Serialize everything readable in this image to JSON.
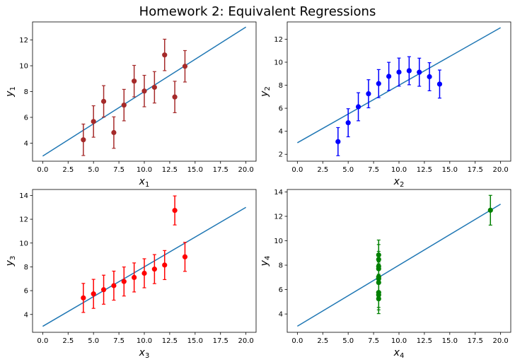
{
  "figure": {
    "title": "Homework 2: Equivalent Regressions"
  },
  "chart_data": [
    {
      "type": "scatter",
      "xlabel": "x",
      "xlabel_sub": "1",
      "ylabel": "y",
      "ylabel_sub": "1",
      "xlim": [
        -1,
        21
      ],
      "ylim": [
        2.6,
        13.4
      ],
      "xticks": [
        0,
        2.5,
        5,
        7.5,
        10,
        12.5,
        15,
        17.5,
        20
      ],
      "xtick_labels": [
        "0.0",
        "2.5",
        "5.0",
        "7.5",
        "10.0",
        "12.5",
        "15.0",
        "17.5",
        "20.0"
      ],
      "yticks": [
        4,
        6,
        8,
        10,
        12
      ],
      "ytick_labels": [
        "4",
        "6",
        "8",
        "10",
        "12"
      ],
      "points": {
        "x": [
          10,
          8,
          13,
          9,
          11,
          14,
          6,
          4,
          12,
          7,
          5
        ],
        "y": [
          8.04,
          6.95,
          7.58,
          8.81,
          8.33,
          9.96,
          7.24,
          4.26,
          10.84,
          4.82,
          5.68
        ]
      },
      "error": 1.22,
      "color": "#a52a2a",
      "fit_line": {
        "x": [
          0,
          20
        ],
        "y": [
          3.0,
          13.0
        ],
        "color": "#1f77b4"
      }
    },
    {
      "type": "scatter",
      "xlabel": "x",
      "xlabel_sub": "2",
      "ylabel": "y",
      "ylabel_sub": "2",
      "xlim": [
        -1,
        21
      ],
      "ylim": [
        1.4,
        13.5
      ],
      "xticks": [
        0,
        2.5,
        5,
        7.5,
        10,
        12.5,
        15,
        17.5,
        20
      ],
      "xtick_labels": [
        "0.0",
        "2.5",
        "5.0",
        "7.5",
        "10.0",
        "12.5",
        "15.0",
        "17.5",
        "20.0"
      ],
      "yticks": [
        2,
        4,
        6,
        8,
        10,
        12
      ],
      "ytick_labels": [
        "2",
        "4",
        "6",
        "8",
        "10",
        "12"
      ],
      "points": {
        "x": [
          10,
          8,
          13,
          9,
          11,
          14,
          6,
          4,
          12,
          7,
          5
        ],
        "y": [
          9.14,
          8.14,
          8.74,
          8.77,
          9.26,
          8.1,
          6.13,
          3.1,
          9.13,
          7.26,
          4.74
        ]
      },
      "error": 1.22,
      "color": "#0000ff",
      "fit_line": {
        "x": [
          0,
          20
        ],
        "y": [
          3.0,
          13.0
        ],
        "color": "#1f77b4"
      }
    },
    {
      "type": "scatter",
      "xlabel": "x",
      "xlabel_sub": "3",
      "ylabel": "y",
      "ylabel_sub": "3",
      "xlim": [
        -1,
        21
      ],
      "ylim": [
        2.5,
        14.5
      ],
      "xticks": [
        0,
        2.5,
        5,
        7.5,
        10,
        12.5,
        15,
        17.5,
        20
      ],
      "xtick_labels": [
        "0.0",
        "2.5",
        "5.0",
        "7.5",
        "10.0",
        "12.5",
        "15.0",
        "17.5",
        "20.0"
      ],
      "yticks": [
        4,
        6,
        8,
        10,
        12,
        14
      ],
      "ytick_labels": [
        "4",
        "6",
        "8",
        "10",
        "12",
        "14"
      ],
      "points": {
        "x": [
          10,
          8,
          13,
          9,
          11,
          14,
          6,
          4,
          12,
          7,
          5
        ],
        "y": [
          7.46,
          6.77,
          12.74,
          7.11,
          7.81,
          8.84,
          6.08,
          5.39,
          8.15,
          6.42,
          5.73
        ]
      },
      "error": 1.22,
      "color": "#ff0000",
      "fit_line": {
        "x": [
          0,
          20
        ],
        "y": [
          3.0,
          13.0
        ],
        "color": "#1f77b4"
      }
    },
    {
      "type": "scatter",
      "xlabel": "x",
      "xlabel_sub": "4",
      "ylabel": "y",
      "ylabel_sub": "4",
      "xlim": [
        -1,
        21
      ],
      "ylim": [
        2.5,
        14.2
      ],
      "xticks": [
        0,
        2.5,
        5,
        7.5,
        10,
        12.5,
        15,
        17.5,
        20
      ],
      "xtick_labels": [
        "0.0",
        "2.5",
        "5.0",
        "7.5",
        "10.0",
        "12.5",
        "15.0",
        "17.5",
        "20.0"
      ],
      "yticks": [
        4,
        6,
        8,
        10,
        12,
        14
      ],
      "ytick_labels": [
        "4",
        "6",
        "8",
        "10",
        "12",
        "14"
      ],
      "points": {
        "x": [
          8,
          8,
          8,
          8,
          8,
          8,
          8,
          19,
          8,
          8,
          8
        ],
        "y": [
          6.58,
          5.76,
          7.71,
          8.84,
          8.47,
          7.04,
          5.25,
          12.5,
          5.56,
          7.91,
          6.89
        ]
      },
      "error": 1.22,
      "color": "#008000",
      "fit_line": {
        "x": [
          0,
          20
        ],
        "y": [
          3.0,
          13.0
        ],
        "color": "#1f77b4"
      }
    }
  ]
}
